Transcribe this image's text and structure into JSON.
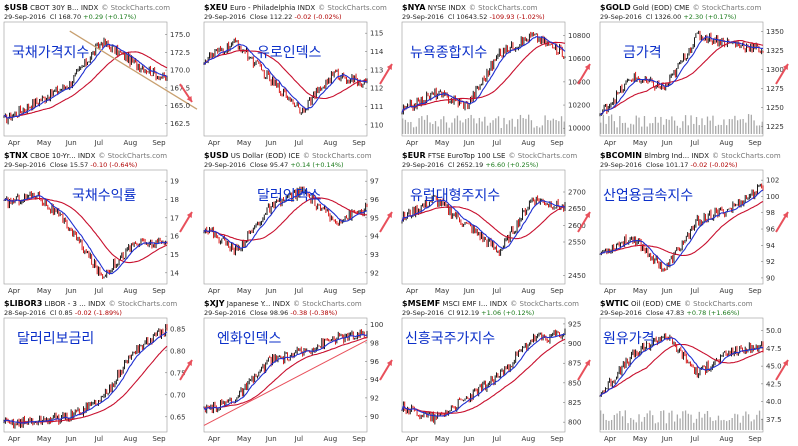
{
  "panels": [
    {
      "id": "usb",
      "symbol": "$USB",
      "name": "CBOT 30Y B...",
      "kind": "INDX",
      "brand": "© StockCharts.com",
      "date": "29-Sep-2016",
      "metric_label": "Cl",
      "close": "168.70",
      "change": "+0.29 (+0.17%)",
      "trend": "pos",
      "title": "국채가격지수",
      "ticks": [
        "175.0",
        "172.5",
        "170.0",
        "167.5",
        "165.0",
        "162.5"
      ]
    },
    {
      "id": "xeu",
      "symbol": "$XEU",
      "name": "Euro - Philadelphia",
      "kind": "INDX",
      "brand": "© StockCharts.com",
      "date": "29-Sep-2016",
      "metric_label": "Close",
      "close": "112.22",
      "change": "-0.02 (-0.02%)",
      "trend": "neg",
      "title": "유로인덱스",
      "ticks": [
        "115",
        "114",
        "113",
        "112",
        "111",
        "110"
      ]
    },
    {
      "id": "nya",
      "symbol": "$NYA",
      "name": "NYSE",
      "kind": "INDX",
      "brand": "© StockCharts.com",
      "date": "29-Sep-2016",
      "metric_label": "Cl",
      "close": "10643.52",
      "change": "-109.93 (-1.02%)",
      "trend": "neg",
      "title": "뉴욕종합지수",
      "ticks": [
        "10800",
        "10600",
        "10400",
        "10200",
        "10000"
      ]
    },
    {
      "id": "gold",
      "symbol": "$GOLD",
      "name": "Gold (EOD)",
      "kind": "CME",
      "brand": "© StockCharts.com",
      "date": "29-Sep-2016",
      "metric_label": "Cl",
      "close": "1326.00",
      "change": "+2.30 (+0.17%)",
      "trend": "pos",
      "title": "금가격",
      "ticks": [
        "1350",
        "1325",
        "1300",
        "1275",
        "1250",
        "1225"
      ]
    },
    {
      "id": "tnx",
      "symbol": "$TNX",
      "name": "CBOE 10-Yr...",
      "kind": "INDX",
      "brand": "© StockCharts.com",
      "date": "29-Sep-2016",
      "metric_label": "Close",
      "close": "15.57",
      "change": "-0.10 (-0.64%)",
      "trend": "neg",
      "title": "국채수익률",
      "ticks": [
        "19",
        "18",
        "17",
        "16",
        "15",
        "14"
      ]
    },
    {
      "id": "usd",
      "symbol": "$USD",
      "name": "US Dollar (EOD)",
      "kind": "ICE",
      "brand": "© StockCharts.com",
      "date": "29-Sep-2016",
      "metric_label": "Close",
      "close": "95.47",
      "change": "+0.14 (+0.14%)",
      "trend": "pos",
      "title": "달러인덱스",
      "ticks": [
        "97",
        "96",
        "95",
        "94",
        "93",
        "92"
      ]
    },
    {
      "id": "eur",
      "symbol": "$EUR",
      "name": "FTSE EuroTop 100",
      "kind": "LSE",
      "brand": "© StockCharts.com",
      "date": "29-Sep-2016",
      "metric_label": "Cl",
      "close": "2652.19",
      "change": "+6.60 (+0.25%)",
      "trend": "pos",
      "title": "유럽대형주지수",
      "ticks": [
        "2700",
        "2650",
        "2600",
        "2550",
        "2450"
      ]
    },
    {
      "id": "bcomin",
      "symbol": "$BCOMIN",
      "name": "Blmbrg Ind...",
      "kind": "INDX",
      "brand": "© StockCharts.com",
      "date": "29-Sep-2016",
      "metric_label": "Close",
      "close": "101.17",
      "change": "-0.02 (-0.02%)",
      "trend": "neg",
      "title": "산업용금속지수",
      "ticks": [
        "102",
        "100",
        "98",
        "96",
        "94",
        "92",
        "90"
      ]
    },
    {
      "id": "libor3",
      "symbol": "$LIBOR3",
      "name": "LIBOR - 3 ...",
      "kind": "INDX",
      "brand": "© StockCharts.com",
      "date": "28-Sep-2016",
      "metric_label": "Cl",
      "close": "0.85",
      "change": "-0.02 (-1.89%)",
      "trend": "neg",
      "title": "달러리보금리",
      "ticks": [
        "0.85",
        "0.80",
        "0.75",
        "0.70",
        "0.65"
      ]
    },
    {
      "id": "xjy",
      "symbol": "$XJY",
      "name": "Japanese Y...",
      "kind": "INDX",
      "brand": "© StockCharts.com",
      "date": "29-Sep-2016",
      "metric_label": "Close",
      "close": "98.96",
      "change": "-0.38 (-0.38%)",
      "trend": "neg",
      "title": "엔화인덱스",
      "ticks": [
        "100",
        "98",
        "96",
        "94",
        "92",
        "90"
      ]
    },
    {
      "id": "msemf",
      "symbol": "$MSEMF",
      "name": "MSCI EMF I...",
      "kind": "INDX",
      "brand": "© StockCharts.com",
      "date": "29-Sep-2016",
      "metric_label": "Cl",
      "close": "912.19",
      "change": "+1.06 (+0.12%)",
      "trend": "pos",
      "title": "신흥국주가지수",
      "ticks": [
        "925",
        "900",
        "875",
        "850",
        "825",
        "800"
      ]
    },
    {
      "id": "wtic",
      "symbol": "$WTIC",
      "name": "Oil (EOD)",
      "kind": "CME",
      "brand": "© StockCharts.com",
      "date": "29-Sep-2016",
      "metric_label": "Close",
      "close": "47.83",
      "change": "+0.78 (+1.66%)",
      "trend": "pos",
      "title": "원유가격",
      "ticks": [
        "50.0",
        "47.5",
        "45.0",
        "42.5",
        "40.0",
        "37.5"
      ]
    }
  ],
  "months": [
    "Apr",
    "May",
    "Jun",
    "Jul",
    "Aug",
    "Sep"
  ],
  "colors": {
    "price": "#000000",
    "up": "#000000",
    "down": "#d40000",
    "ma_short": "#1f2fd1",
    "ma_long": "#c8102e",
    "arrow": "#e8505b",
    "trend_line": "#c8a070",
    "volume": "#a9a9a9",
    "title": "#0b2fc9"
  },
  "chart_data": [
    {
      "type": "line",
      "panel": "$USB",
      "x": [
        "Apr",
        "May",
        "Jun",
        "Jul",
        "Aug",
        "Sep"
      ],
      "series": [
        {
          "values": [
            163,
            165.5,
            168,
            174,
            171,
            168.7
          ]
        }
      ],
      "ylim": [
        161,
        176.5
      ]
    },
    {
      "type": "line",
      "panel": "$XEU",
      "x": [
        "Apr",
        "May",
        "Jun",
        "Jul",
        "Aug",
        "Sep"
      ],
      "series": [
        {
          "values": [
            113.5,
            114.5,
            112.5,
            110.8,
            112.8,
            112.2
          ]
        }
      ],
      "ylim": [
        109.5,
        115.5
      ]
    },
    {
      "type": "line",
      "panel": "$NYA",
      "x": [
        "Apr",
        "May",
        "Jun",
        "Jul",
        "Aug",
        "Sep"
      ],
      "series": [
        {
          "values": [
            10150,
            10300,
            10200,
            10650,
            10800,
            10643
          ]
        }
      ],
      "ylim": [
        9950,
        10900
      ]
    },
    {
      "type": "line",
      "panel": "$GOLD",
      "x": [
        "Apr",
        "May",
        "Jun",
        "Jul",
        "Aug",
        "Sep"
      ],
      "series": [
        {
          "values": [
            1240,
            1290,
            1275,
            1345,
            1335,
            1326
          ]
        }
      ],
      "ylim": [
        1215,
        1360
      ]
    },
    {
      "type": "line",
      "panel": "$TNX",
      "x": [
        "Apr",
        "May",
        "Jun",
        "Jul",
        "Aug",
        "Sep"
      ],
      "series": [
        {
          "values": [
            17.8,
            18.3,
            16.5,
            13.8,
            15.6,
            15.6
          ]
        }
      ],
      "ylim": [
        13.5,
        19.5
      ]
    },
    {
      "type": "line",
      "panel": "$USD",
      "x": [
        "Apr",
        "May",
        "Jun",
        "Jul",
        "Aug",
        "Sep"
      ],
      "series": [
        {
          "values": [
            94.5,
            93.2,
            95.5,
            96.5,
            94.8,
            95.5
          ]
        }
      ],
      "ylim": [
        91.5,
        97.5
      ]
    },
    {
      "type": "line",
      "panel": "$EUR",
      "x": [
        "Apr",
        "May",
        "Jun",
        "Jul",
        "Aug",
        "Sep"
      ],
      "series": [
        {
          "values": [
            2620,
            2680,
            2600,
            2520,
            2680,
            2652
          ]
        }
      ],
      "ylim": [
        2430,
        2760
      ]
    },
    {
      "type": "line",
      "panel": "$BCOMIN",
      "x": [
        "Apr",
        "May",
        "Jun",
        "Jul",
        "Aug",
        "Sep"
      ],
      "series": [
        {
          "values": [
            93,
            95,
            91,
            97,
            98.5,
            101.2
          ]
        }
      ],
      "ylim": [
        89.5,
        103
      ]
    },
    {
      "type": "line",
      "panel": "$LIBOR3",
      "x": [
        "Apr",
        "May",
        "Jun",
        "Jul",
        "Aug",
        "Sep"
      ],
      "series": [
        {
          "values": [
            0.635,
            0.64,
            0.65,
            0.69,
            0.8,
            0.85
          ]
        }
      ],
      "ylim": [
        0.62,
        0.87
      ]
    },
    {
      "type": "line",
      "panel": "$XJY",
      "x": [
        "Apr",
        "May",
        "Jun",
        "Jul",
        "Aug",
        "Sep"
      ],
      "series": [
        {
          "values": [
            90.5,
            92,
            96,
            97,
            98.5,
            98.96
          ]
        }
      ],
      "ylim": [
        88.5,
        100.5
      ]
    },
    {
      "type": "line",
      "panel": "$MSEMF",
      "x": [
        "Apr",
        "May",
        "Jun",
        "Jul",
        "Aug",
        "Sep"
      ],
      "series": [
        {
          "values": [
            820,
            805,
            830,
            860,
            905,
            912
          ]
        }
      ],
      "ylim": [
        790,
        930
      ]
    },
    {
      "type": "line",
      "panel": "$WTIC",
      "x": [
        "Apr",
        "May",
        "Jun",
        "Jul",
        "Aug",
        "Sep"
      ],
      "series": [
        {
          "values": [
            41,
            46.5,
            49.5,
            44,
            47,
            47.8
          ]
        }
      ],
      "ylim": [
        36,
        51.5
      ]
    }
  ]
}
